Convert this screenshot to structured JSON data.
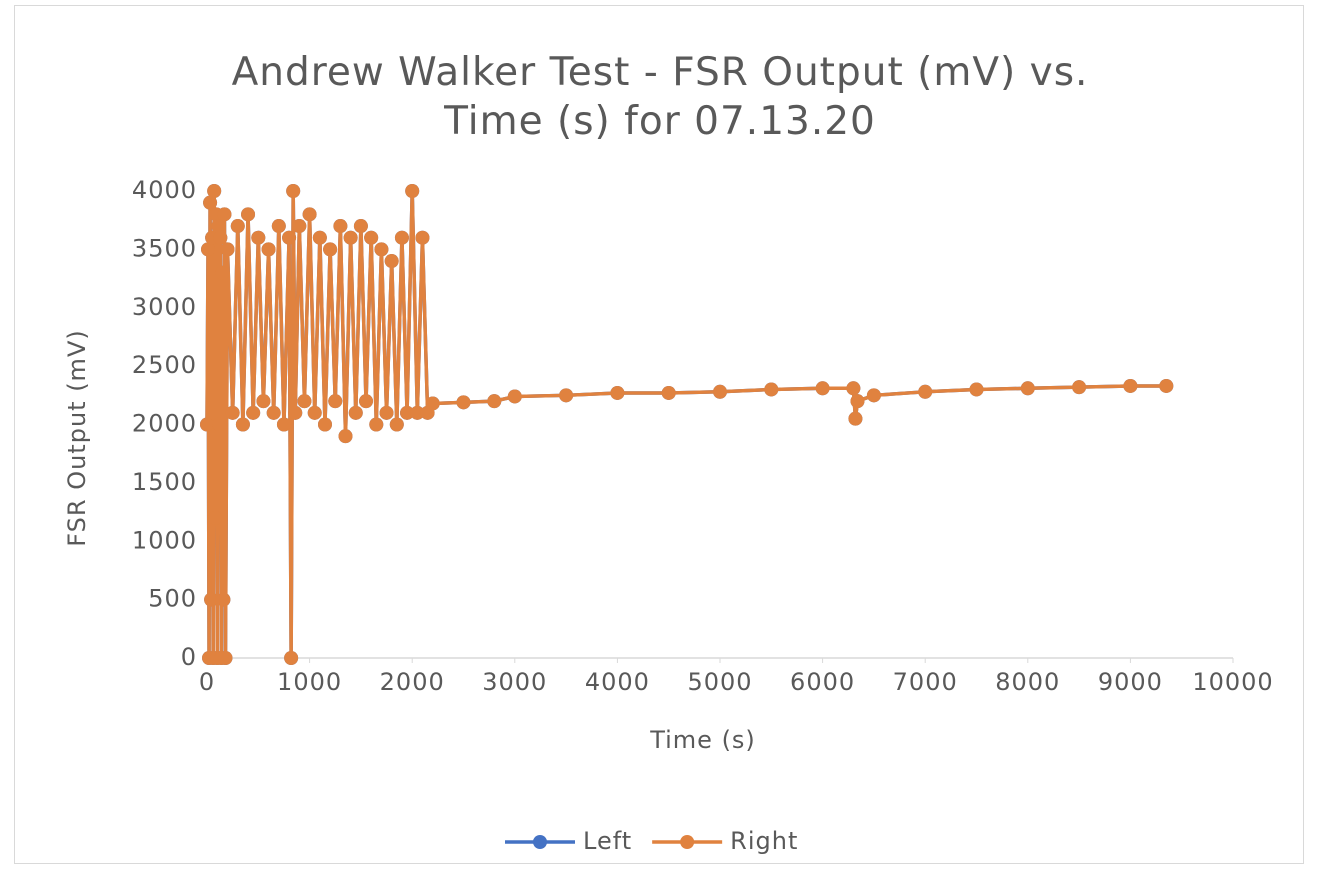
{
  "chart_data": {
    "type": "scatter-line",
    "title": "Andrew Walker Test - FSR Output (mV) vs. Time (s) for 07.13.20",
    "x_label": "Time (s)",
    "y_label": "FSR Output (mV)",
    "x": [
      0,
      10,
      20,
      30,
      40,
      50,
      60,
      70,
      80,
      90,
      100,
      110,
      120,
      130,
      140,
      150,
      160,
      170,
      180,
      200,
      250,
      300,
      350,
      400,
      450,
      500,
      550,
      600,
      650,
      700,
      750,
      800,
      820,
      840,
      860,
      900,
      950,
      1000,
      1050,
      1100,
      1150,
      1200,
      1250,
      1300,
      1350,
      1400,
      1450,
      1500,
      1550,
      1600,
      1650,
      1700,
      1750,
      1800,
      1850,
      1900,
      1950,
      2000,
      2050,
      2100,
      2150,
      2200,
      2500,
      2800,
      3000,
      3500,
      4000,
      4500,
      5000,
      5500,
      6000,
      6300,
      6320,
      6340,
      6500,
      7000,
      7500,
      8000,
      8500,
      9000,
      9350
    ],
    "series": [
      {
        "name": "Left",
        "color": "#4472c4",
        "values": [
          2000,
          3500,
          0,
          3900,
          500,
          3600,
          0,
          4000,
          1200,
          3800,
          0,
          3700,
          2000,
          3600,
          0,
          3300,
          500,
          3800,
          0,
          3500,
          2100,
          3700,
          2000,
          3800,
          2100,
          3600,
          2200,
          3500,
          2100,
          3700,
          2000,
          3600,
          0,
          4000,
          2100,
          3700,
          2200,
          3800,
          2100,
          3600,
          2000,
          3500,
          2200,
          3700,
          1900,
          3600,
          2100,
          3700,
          2200,
          3600,
          2000,
          3500,
          2100,
          3400,
          2000,
          3600,
          2100,
          4000,
          2100,
          3600,
          2100,
          2180,
          2190,
          2200,
          2240,
          2250,
          2270,
          2270,
          2280,
          2300,
          2310,
          2310,
          2050,
          2200,
          2250,
          2280,
          2300,
          2310,
          2320,
          2330,
          2330
        ]
      },
      {
        "name": "Right",
        "color": "#e0823f",
        "values": [
          2000,
          3500,
          0,
          3900,
          500,
          3600,
          0,
          4000,
          1200,
          3800,
          0,
          3700,
          2000,
          3600,
          0,
          3300,
          500,
          3800,
          0,
          3500,
          2100,
          3700,
          2000,
          3800,
          2100,
          3600,
          2200,
          3500,
          2100,
          3700,
          2000,
          3600,
          0,
          4000,
          2100,
          3700,
          2200,
          3800,
          2100,
          3600,
          2000,
          3500,
          2200,
          3700,
          1900,
          3600,
          2100,
          3700,
          2200,
          3600,
          2000,
          3500,
          2100,
          3400,
          2000,
          3600,
          2100,
          4000,
          2100,
          3600,
          2100,
          2180,
          2190,
          2200,
          2240,
          2250,
          2270,
          2270,
          2280,
          2300,
          2310,
          2310,
          2050,
          2200,
          2250,
          2280,
          2300,
          2310,
          2320,
          2330,
          2330
        ]
      }
    ],
    "xlim": [
      0,
      10000
    ],
    "xticks": [
      0,
      1000,
      2000,
      3000,
      4000,
      5000,
      6000,
      7000,
      8000,
      9000,
      10000
    ],
    "ylim": [
      0,
      4000
    ],
    "yticks": [
      0,
      500,
      1000,
      1500,
      2000,
      2500,
      3000,
      3500,
      4000
    ],
    "grid": false,
    "legend": "bottom"
  }
}
